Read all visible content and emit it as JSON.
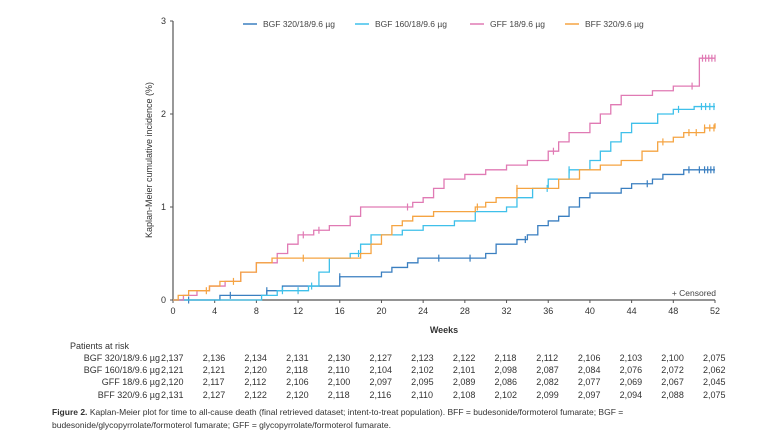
{
  "chart_data": {
    "type": "line",
    "title": "",
    "xlabel": "Weeks",
    "ylabel": "Kaplan-Meier cumulative incidence (%)",
    "xlim": [
      0,
      52
    ],
    "ylim": [
      0,
      3
    ],
    "xticks": [
      0,
      4,
      8,
      12,
      16,
      20,
      24,
      28,
      32,
      36,
      40,
      44,
      48,
      52
    ],
    "yticks": [
      0,
      1,
      2,
      3
    ],
    "grid": false,
    "legend_position": "top",
    "censored_label": "+ Censored",
    "series": [
      {
        "name": "BGF 320/18/9.6 µg",
        "color": "#3a7fc0",
        "steps": [
          [
            0,
            0
          ],
          [
            4.5,
            0.05
          ],
          [
            9,
            0.1
          ],
          [
            10.5,
            0.15
          ],
          [
            16,
            0.25
          ],
          [
            20,
            0.3
          ],
          [
            21,
            0.35
          ],
          [
            22.5,
            0.4
          ],
          [
            23.5,
            0.45
          ],
          [
            30,
            0.5
          ],
          [
            31,
            0.6
          ],
          [
            33,
            0.65
          ],
          [
            34,
            0.7
          ],
          [
            35,
            0.8
          ],
          [
            36,
            0.85
          ],
          [
            37,
            0.9
          ],
          [
            38,
            1.0
          ],
          [
            39,
            1.1
          ],
          [
            40,
            1.15
          ],
          [
            43,
            1.2
          ],
          [
            44,
            1.25
          ],
          [
            46,
            1.3
          ],
          [
            47,
            1.35
          ],
          [
            49,
            1.4
          ],
          [
            52,
            1.4
          ]
        ],
        "censored": [
          1.5,
          5.5,
          9,
          16,
          25.5,
          28.5,
          33.8,
          45.5,
          49.5,
          50.5,
          51,
          51.3,
          51.6,
          51.9
        ]
      },
      {
        "name": "BGF 160/18/9.6 µg",
        "color": "#3fc0ea",
        "steps": [
          [
            0,
            0
          ],
          [
            8.5,
            0.05
          ],
          [
            10,
            0.1
          ],
          [
            13,
            0.15
          ],
          [
            14,
            0.3
          ],
          [
            15,
            0.45
          ],
          [
            17,
            0.5
          ],
          [
            18,
            0.6
          ],
          [
            19,
            0.7
          ],
          [
            22,
            0.75
          ],
          [
            24,
            0.8
          ],
          [
            27,
            0.85
          ],
          [
            29,
            0.95
          ],
          [
            32,
            1.0
          ],
          [
            33,
            1.1
          ],
          [
            34.5,
            1.2
          ],
          [
            36,
            1.3
          ],
          [
            38,
            1.4
          ],
          [
            40,
            1.5
          ],
          [
            41,
            1.6
          ],
          [
            42,
            1.7
          ],
          [
            43,
            1.8
          ],
          [
            44,
            1.9
          ],
          [
            46.5,
            2.0
          ],
          [
            48,
            2.05
          ],
          [
            50,
            2.08
          ],
          [
            52,
            2.08
          ]
        ],
        "censored": [
          10.5,
          12,
          13.3,
          17.8,
          35.9,
          38,
          48.5,
          50.7,
          51.1,
          51.5,
          51.9
        ]
      },
      {
        "name": "GFF 18/9.6 µg",
        "color": "#e07ab4",
        "steps": [
          [
            0,
            0
          ],
          [
            1,
            0.05
          ],
          [
            2.3,
            0.1
          ],
          [
            3.5,
            0.15
          ],
          [
            5,
            0.2
          ],
          [
            6.5,
            0.3
          ],
          [
            8,
            0.4
          ],
          [
            10,
            0.5
          ],
          [
            11,
            0.6
          ],
          [
            12,
            0.7
          ],
          [
            13.5,
            0.75
          ],
          [
            15,
            0.8
          ],
          [
            17,
            0.9
          ],
          [
            18,
            1.0
          ],
          [
            23,
            1.05
          ],
          [
            24,
            1.1
          ],
          [
            25,
            1.2
          ],
          [
            26,
            1.3
          ],
          [
            28,
            1.35
          ],
          [
            30,
            1.4
          ],
          [
            32,
            1.45
          ],
          [
            34,
            1.5
          ],
          [
            36,
            1.6
          ],
          [
            37,
            1.7
          ],
          [
            38,
            1.8
          ],
          [
            40,
            1.9
          ],
          [
            41,
            2.0
          ],
          [
            42,
            2.1
          ],
          [
            43,
            2.2
          ],
          [
            46,
            2.25
          ],
          [
            48,
            2.3
          ],
          [
            50.5,
            2.6
          ],
          [
            52,
            2.6
          ]
        ],
        "censored": [
          12.5,
          14,
          22.5,
          36.5,
          49.8,
          50.8,
          51.1,
          51.4,
          51.7,
          52
        ]
      },
      {
        "name": "BFF 320/9.6 µg",
        "color": "#f5a442",
        "steps": [
          [
            0,
            0
          ],
          [
            0.5,
            0.05
          ],
          [
            1.5,
            0.1
          ],
          [
            3.5,
            0.15
          ],
          [
            4.5,
            0.2
          ],
          [
            6.5,
            0.3
          ],
          [
            8,
            0.4
          ],
          [
            9.5,
            0.45
          ],
          [
            18,
            0.5
          ],
          [
            19,
            0.6
          ],
          [
            20,
            0.7
          ],
          [
            21,
            0.8
          ],
          [
            22,
            0.85
          ],
          [
            23,
            0.9
          ],
          [
            25,
            0.95
          ],
          [
            29,
            1.0
          ],
          [
            30,
            1.05
          ],
          [
            31,
            1.1
          ],
          [
            33,
            1.2
          ],
          [
            37,
            1.3
          ],
          [
            39,
            1.4
          ],
          [
            41,
            1.45
          ],
          [
            43,
            1.5
          ],
          [
            45,
            1.6
          ],
          [
            46.5,
            1.7
          ],
          [
            48,
            1.75
          ],
          [
            49,
            1.8
          ],
          [
            51,
            1.85
          ],
          [
            52,
            1.9
          ]
        ],
        "censored": [
          3.2,
          5.8,
          12.5,
          29.2,
          33,
          47,
          49.5,
          50.2,
          51,
          51.5,
          51.9
        ]
      }
    ]
  },
  "risk_table": {
    "header": "Patients at risk",
    "rows": [
      {
        "label": "BGF 320/18/9.6 µg",
        "values": [
          "2,137",
          "2,136",
          "2,134",
          "2,131",
          "2,130",
          "2,127",
          "2,123",
          "2,122",
          "2,118",
          "2,112",
          "2,106",
          "2,103",
          "2,100",
          "2,075"
        ]
      },
      {
        "label": "BGF 160/18/9.6 µg",
        "values": [
          "2,121",
          "2,121",
          "2,120",
          "2,118",
          "2,110",
          "2,104",
          "2,102",
          "2,101",
          "2,098",
          "2,087",
          "2,084",
          "2,076",
          "2,072",
          "2,062"
        ]
      },
      {
        "label": "GFF 18/9.6 µg",
        "values": [
          "2,120",
          "2,117",
          "2,112",
          "2,106",
          "2,100",
          "2,097",
          "2,095",
          "2,089",
          "2,086",
          "2,082",
          "2,077",
          "2,069",
          "2,067",
          "2,045"
        ]
      },
      {
        "label": "BFF 320/9.6 µg",
        "values": [
          "2,131",
          "2,127",
          "2,122",
          "2,120",
          "2,118",
          "2,116",
          "2,110",
          "2,108",
          "2,102",
          "2,099",
          "2,097",
          "2,094",
          "2,088",
          "2,075"
        ]
      }
    ]
  },
  "caption": {
    "label": "Figure 2.",
    "text": "Kaplan-Meier plot for time to all-cause death (final retrieved dataset; intent-to-treat population). BFF = budesonide/formoterol fumarate; BGF = budesonide/glycopyrrolate/formoterol fumarate; GFF = glycopyrrolate/formoterol fumarate."
  }
}
